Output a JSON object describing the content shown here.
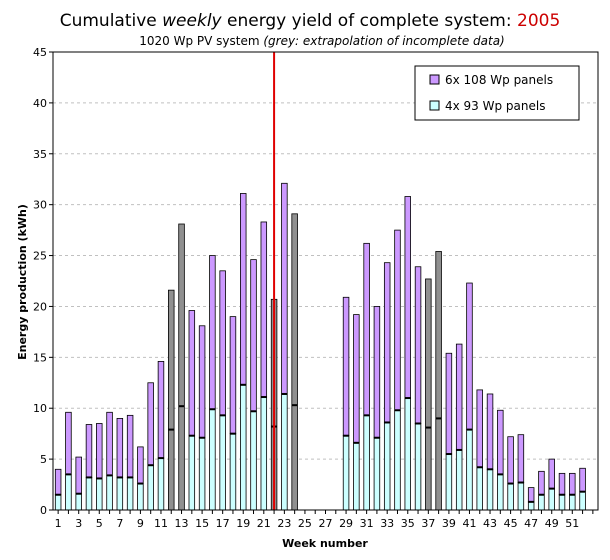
{
  "chart_data": {
    "type": "bar",
    "title": {
      "part1": "Cumulative ",
      "part2": "weekly",
      "part3": " energy yield of complete system: ",
      "year": "2005"
    },
    "subtitle": {
      "part1": "1020 Wp PV system ",
      "part2": "(grey: extrapolation of incomplete data)"
    },
    "xlabel": "Week number",
    "ylabel": "Energy production (kWh)",
    "ylim": [
      0,
      45
    ],
    "yticks": [
      0,
      5,
      10,
      15,
      20,
      25,
      30,
      35,
      40,
      45
    ],
    "xlim": [
      0.5,
      53.5
    ],
    "xticks": [
      1,
      3,
      5,
      7,
      9,
      11,
      13,
      15,
      17,
      19,
      21,
      23,
      25,
      27,
      29,
      31,
      33,
      35,
      37,
      39,
      41,
      43,
      45,
      47,
      49,
      51
    ],
    "grid": true,
    "legend_position": "top-right",
    "series": [
      {
        "name": "6x 108 Wp panels",
        "color": "#CC99FF"
      },
      {
        "name": "4x 93 Wp panels",
        "color": "#CCFFFF"
      }
    ],
    "extrapolated_color": "#909090",
    "current_week_marker": {
      "week": 22,
      "color": "#E00000"
    },
    "colors": {
      "title_year": "#CC0000",
      "grid": "#C0C0C0",
      "divider": "#000000"
    },
    "weeks": [
      {
        "week": 1,
        "total": 4.0,
        "lower": 1.5
      },
      {
        "week": 2,
        "total": 9.6,
        "lower": 3.5
      },
      {
        "week": 3,
        "total": 5.2,
        "lower": 1.6
      },
      {
        "week": 4,
        "total": 8.4,
        "lower": 3.2
      },
      {
        "week": 5,
        "total": 8.5,
        "lower": 3.1
      },
      {
        "week": 6,
        "total": 9.6,
        "lower": 3.4
      },
      {
        "week": 7,
        "total": 9.0,
        "lower": 3.2
      },
      {
        "week": 8,
        "total": 9.3,
        "lower": 3.2
      },
      {
        "week": 9,
        "total": 6.2,
        "lower": 2.6
      },
      {
        "week": 10,
        "total": 12.5,
        "lower": 4.4
      },
      {
        "week": 11,
        "total": 14.6,
        "lower": 5.1
      },
      {
        "week": 12,
        "total": 21.6,
        "lower": 7.9,
        "extrapolated": true
      },
      {
        "week": 13,
        "total": 28.1,
        "lower": 10.2,
        "extrapolated": true
      },
      {
        "week": 14,
        "total": 19.6,
        "lower": 7.3
      },
      {
        "week": 15,
        "total": 18.1,
        "lower": 7.1
      },
      {
        "week": 16,
        "total": 25.0,
        "lower": 9.9
      },
      {
        "week": 17,
        "total": 23.5,
        "lower": 9.3
      },
      {
        "week": 18,
        "total": 19.0,
        "lower": 7.5
      },
      {
        "week": 19,
        "total": 31.1,
        "lower": 12.3
      },
      {
        "week": 20,
        "total": 24.6,
        "lower": 9.7
      },
      {
        "week": 21,
        "total": 28.3,
        "lower": 11.1
      },
      {
        "week": 22,
        "total": 20.7,
        "lower": 8.2,
        "extrapolated": true
      },
      {
        "week": 23,
        "total": 32.1,
        "lower": 11.4
      },
      {
        "week": 24,
        "total": 29.1,
        "lower": 10.3,
        "extrapolated": true
      },
      {
        "week": 29,
        "total": 20.9,
        "lower": 7.3
      },
      {
        "week": 30,
        "total": 19.2,
        "lower": 6.6
      },
      {
        "week": 31,
        "total": 26.2,
        "lower": 9.3
      },
      {
        "week": 32,
        "total": 20.0,
        "lower": 7.1
      },
      {
        "week": 33,
        "total": 24.3,
        "lower": 8.6
      },
      {
        "week": 34,
        "total": 27.5,
        "lower": 9.8
      },
      {
        "week": 35,
        "total": 30.8,
        "lower": 11.0
      },
      {
        "week": 36,
        "total": 23.9,
        "lower": 8.5
      },
      {
        "week": 37,
        "total": 22.7,
        "lower": 8.1,
        "extrapolated": true
      },
      {
        "week": 38,
        "total": 25.4,
        "lower": 9.0,
        "extrapolated": true
      },
      {
        "week": 39,
        "total": 15.4,
        "lower": 5.5
      },
      {
        "week": 40,
        "total": 16.3,
        "lower": 5.9
      },
      {
        "week": 41,
        "total": 22.3,
        "lower": 7.9
      },
      {
        "week": 42,
        "total": 11.8,
        "lower": 4.2
      },
      {
        "week": 43,
        "total": 11.4,
        "lower": 4.0
      },
      {
        "week": 44,
        "total": 9.8,
        "lower": 3.5
      },
      {
        "week": 45,
        "total": 7.2,
        "lower": 2.6
      },
      {
        "week": 46,
        "total": 7.4,
        "lower": 2.7
      },
      {
        "week": 47,
        "total": 2.2,
        "lower": 0.8
      },
      {
        "week": 48,
        "total": 3.8,
        "lower": 1.5
      },
      {
        "week": 49,
        "total": 5.0,
        "lower": 2.1
      },
      {
        "week": 50,
        "total": 3.6,
        "lower": 1.5
      },
      {
        "week": 51,
        "total": 3.6,
        "lower": 1.5
      },
      {
        "week": 52,
        "total": 4.1,
        "lower": 1.8
      }
    ]
  }
}
